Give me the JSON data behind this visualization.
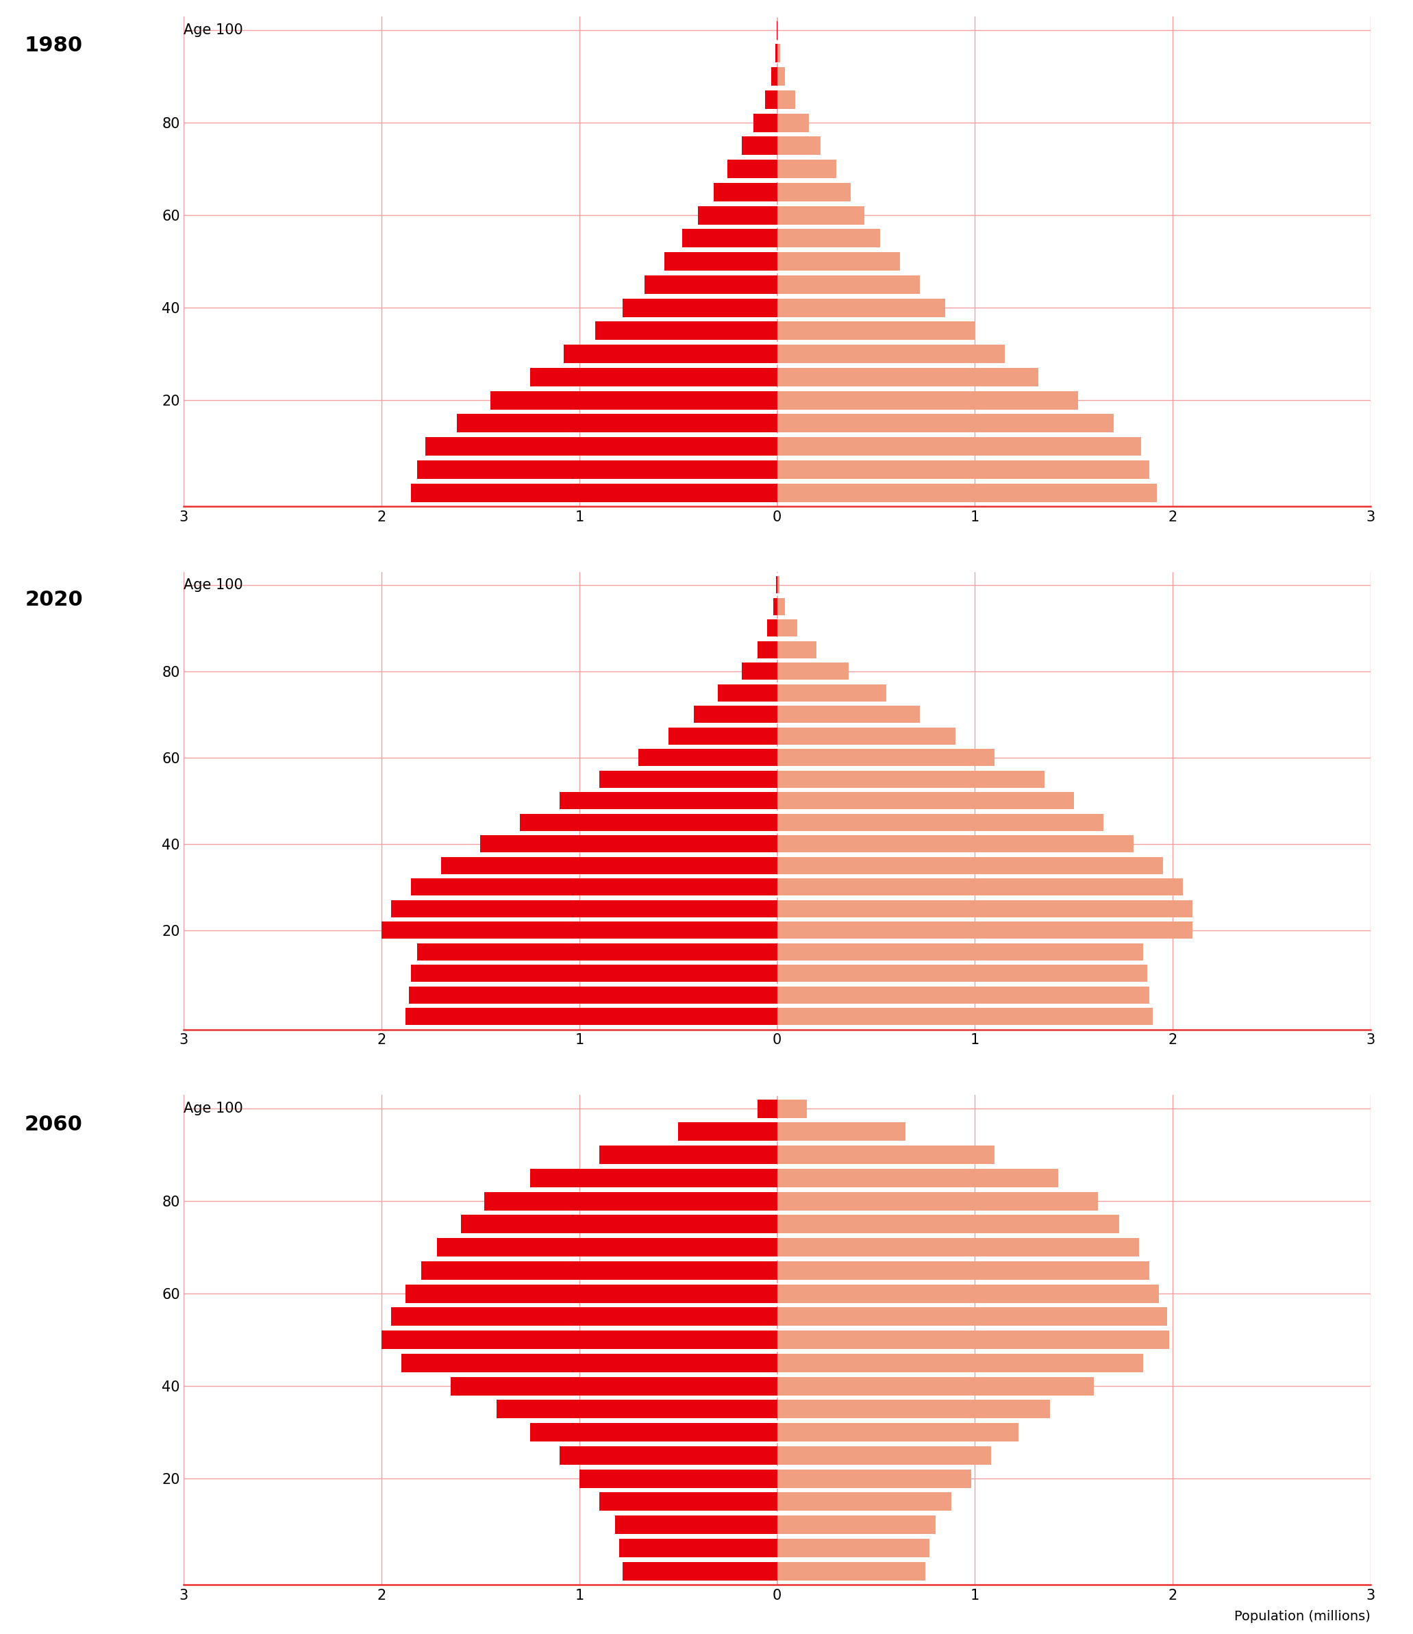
{
  "year_labels": [
    "1980",
    "2020",
    "2060"
  ],
  "age_groups": [
    0,
    5,
    10,
    15,
    20,
    25,
    30,
    35,
    40,
    45,
    50,
    55,
    60,
    65,
    70,
    75,
    80,
    85,
    90,
    95,
    100
  ],
  "male_color": "#e8000d",
  "female_color": "#f0a080",
  "grid_color": "#f5a0a0",
  "axis_color": "#e83030",
  "male_1980": [
    1.85,
    1.82,
    1.78,
    1.62,
    1.45,
    1.25,
    1.08,
    0.92,
    0.78,
    0.67,
    0.57,
    0.48,
    0.4,
    0.32,
    0.25,
    0.18,
    0.12,
    0.06,
    0.03,
    0.01,
    0.003
  ],
  "female_1980": [
    1.92,
    1.88,
    1.84,
    1.7,
    1.52,
    1.32,
    1.15,
    1.0,
    0.85,
    0.72,
    0.62,
    0.52,
    0.44,
    0.37,
    0.3,
    0.22,
    0.16,
    0.09,
    0.04,
    0.015,
    0.005
  ],
  "male_2020": [
    1.88,
    1.86,
    1.85,
    1.82,
    2.0,
    1.95,
    1.85,
    1.7,
    1.5,
    1.3,
    1.1,
    0.9,
    0.7,
    0.55,
    0.42,
    0.3,
    0.18,
    0.1,
    0.05,
    0.02,
    0.005
  ],
  "female_2020": [
    1.9,
    1.88,
    1.87,
    1.85,
    2.1,
    2.1,
    2.05,
    1.95,
    1.8,
    1.65,
    1.5,
    1.35,
    1.1,
    0.9,
    0.72,
    0.55,
    0.36,
    0.2,
    0.1,
    0.04,
    0.01
  ],
  "male_2060": [
    0.78,
    0.8,
    0.82,
    0.9,
    1.0,
    1.1,
    1.25,
    1.42,
    1.65,
    1.9,
    2.0,
    1.95,
    1.88,
    1.8,
    1.72,
    1.6,
    1.48,
    1.25,
    0.9,
    0.5,
    0.1
  ],
  "female_2060": [
    0.75,
    0.77,
    0.8,
    0.88,
    0.98,
    1.08,
    1.22,
    1.38,
    1.6,
    1.85,
    1.98,
    1.97,
    1.93,
    1.88,
    1.83,
    1.73,
    1.62,
    1.42,
    1.1,
    0.65,
    0.15
  ],
  "xlim": [
    -3,
    3
  ],
  "xticks": [
    -3,
    -2,
    -1,
    0,
    1,
    2,
    3
  ],
  "xtick_labels": [
    "3",
    "2",
    "1",
    "0",
    "1",
    "2",
    "3"
  ],
  "ytick_ages": [
    20,
    40,
    60,
    80
  ],
  "xlabel": "Population (millions)",
  "ylabel_prefix": "Age ",
  "bar_height": 4.0
}
